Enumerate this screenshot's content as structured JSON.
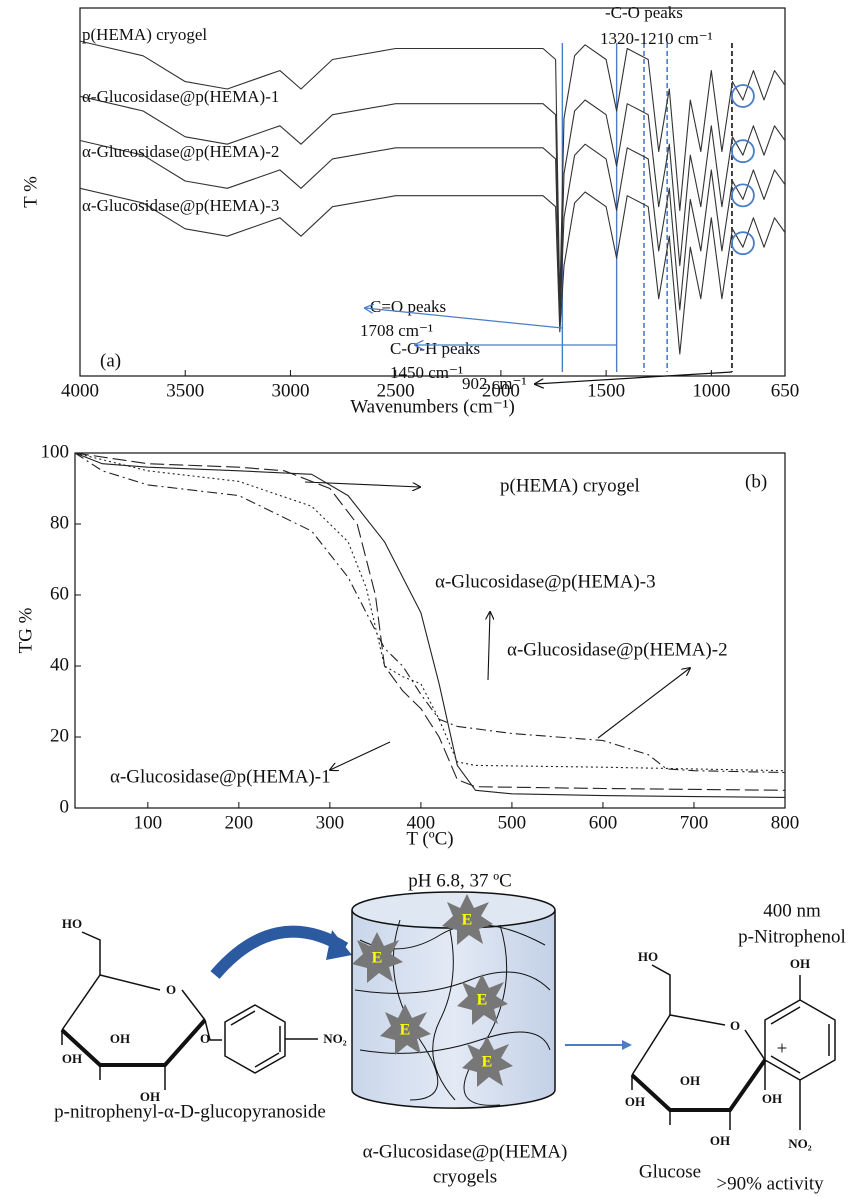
{
  "chart_data": [
    {
      "type": "line",
      "panel_label": "(a)",
      "ylabel": "T %",
      "xlabel": "Wavenumbers (cm⁻¹)",
      "xlim": [
        4000,
        650
      ],
      "xticks": [
        4000,
        3500,
        3000,
        2500,
        2000,
        1500,
        1000,
        650
      ],
      "ylim": [
        0,
        100
      ],
      "x": [
        4000,
        3700,
        3500,
        3300,
        3100,
        3050,
        2950,
        2800,
        2500,
        2000,
        1800,
        1740,
        1720,
        1700,
        1650,
        1600,
        1500,
        1450,
        1400,
        1300,
        1250,
        1200,
        1150,
        1100,
        1050,
        1000,
        950,
        900,
        850,
        800,
        750,
        700,
        650
      ],
      "series": [
        {
          "name": "p(HEMA) cryogel",
          "color": "#333333",
          "values": [
            91,
            87,
            80,
            78,
            82,
            83,
            78,
            86,
            89,
            89,
            89,
            86,
            20,
            70,
            87,
            90,
            86,
            72,
            89,
            86,
            61,
            78,
            45,
            75,
            61,
            83,
            61,
            80,
            75,
            83,
            75,
            83,
            79
          ]
        },
        {
          "name": "α-Glucosidase@p(HEMA)-1",
          "color": "#333333",
          "values": [
            76,
            72,
            65,
            63,
            67,
            68,
            63,
            71,
            74,
            74,
            74,
            71,
            16,
            55,
            72,
            75,
            71,
            57,
            74,
            71,
            46,
            63,
            30,
            60,
            46,
            68,
            46,
            65,
            60,
            68,
            60,
            68,
            64
          ]
        },
        {
          "name": "α-Glucosidase@p(HEMA)-2",
          "color": "#333333",
          "values": [
            64,
            60,
            53,
            51,
            55,
            56,
            51,
            59,
            62,
            62,
            62,
            59,
            14,
            43,
            60,
            63,
            59,
            45,
            62,
            59,
            34,
            51,
            18,
            48,
            34,
            56,
            34,
            53,
            48,
            56,
            48,
            56,
            52
          ]
        },
        {
          "name": "α-Glucosidase@p(HEMA)-3",
          "color": "#333333",
          "values": [
            51,
            47,
            40,
            38,
            42,
            43,
            38,
            46,
            49,
            49,
            49,
            46,
            12,
            30,
            47,
            50,
            46,
            32,
            49,
            46,
            21,
            38,
            6,
            35,
            21,
            43,
            21,
            40,
            35,
            43,
            35,
            43,
            39
          ]
        }
      ],
      "reference_lines": [
        {
          "x": 1708,
          "color": "#4a7cc7",
          "dash": false
        },
        {
          "x": 1450,
          "color": "#4a7cc7",
          "dash": false
        },
        {
          "x": 1320,
          "color": "#4a7cc7",
          "dash": true
        },
        {
          "x": 1210,
          "color": "#4a7cc7",
          "dash": true
        },
        {
          "x": 902,
          "color": "#111111",
          "dash": true
        }
      ],
      "annotations": [
        "C=O peaks",
        "1708 cm⁻¹",
        "C-O-H peaks",
        "1450 cm⁻¹",
        "-C-O peaks",
        "1320-1210 cm⁻¹",
        "902 cm⁻¹"
      ]
    },
    {
      "type": "line",
      "panel_label": "(b)",
      "ylabel": "TG %",
      "xlabel": "T (ºC)",
      "xlim": [
        20,
        800
      ],
      "xticks": [
        100,
        200,
        300,
        400,
        500,
        600,
        700,
        800
      ],
      "ylim": [
        0,
        100
      ],
      "yticks": [
        0,
        20,
        40,
        60,
        80,
        100
      ],
      "series": [
        {
          "name": "p(HEMA) cryogel",
          "color": "#222222",
          "dash": "solid",
          "x": [
            20,
            50,
            100,
            200,
            280,
            320,
            360,
            400,
            420,
            440,
            460,
            500,
            600,
            700,
            800
          ],
          "values": [
            100,
            97,
            96,
            95,
            94,
            88,
            75,
            55,
            35,
            12,
            5,
            4,
            3.5,
            3.2,
            3
          ]
        },
        {
          "name": "α-Glucosidase@p(HEMA)-1",
          "color": "#222222",
          "dash": "dashed",
          "x": [
            20,
            100,
            200,
            250,
            300,
            330,
            350,
            360,
            380,
            400,
            420,
            440,
            460,
            600,
            800
          ],
          "values": [
            100,
            97,
            96,
            95,
            90,
            80,
            60,
            40,
            33,
            28,
            20,
            8,
            6,
            5.5,
            5
          ]
        },
        {
          "name": "α-Glucosidase@p(HEMA)-2",
          "color": "#222222",
          "dash": "dotted",
          "x": [
            20,
            100,
            200,
            280,
            320,
            340,
            360,
            380,
            400,
            420,
            440,
            460,
            600,
            800
          ],
          "values": [
            100,
            95,
            92,
            85,
            75,
            62,
            40,
            37,
            35,
            25,
            13,
            12,
            11.5,
            10.5
          ]
        },
        {
          "name": "α-Glucosidase@p(HEMA)-3",
          "color": "#222222",
          "dash": "dashdot",
          "x": [
            20,
            50,
            100,
            200,
            280,
            320,
            340,
            360,
            380,
            400,
            420,
            440,
            500,
            600,
            650,
            670,
            700,
            800
          ],
          "values": [
            100,
            95,
            91,
            88,
            78,
            65,
            55,
            45,
            40,
            32,
            25,
            23,
            21,
            19,
            15,
            11,
            10.5,
            10
          ]
        }
      ]
    }
  ],
  "scheme": {
    "condition": "pH 6.8, 37 ºC",
    "wavelength": "400 nm",
    "product": "p-Nitrophenol",
    "substrate": "p-nitrophenyl-α-D-glucopyranoside",
    "catalyst": [
      "α-Glucosidase@p(HEMA)",
      "cryogels"
    ],
    "glucose": "Glucose",
    "activity": ">90% activity",
    "plus": "+",
    "enzyme": "E",
    "atoms": {
      "ho": "HO",
      "oh": "OH",
      "o": "O",
      "no2": "NO₂"
    }
  }
}
